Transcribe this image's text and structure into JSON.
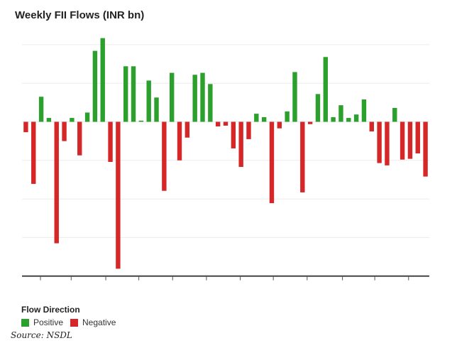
{
  "chart_data": {
    "type": "bar",
    "title": "Weekly FII Flows (INR bn)",
    "xlabel": "",
    "ylabel": "",
    "ylim": [
      -40,
      24
    ],
    "gridlines": [
      20,
      10,
      0,
      -10,
      -20,
      -30
    ],
    "grid": true,
    "x_tick_positions": [
      1.9,
      5.9,
      10.4,
      14.7,
      19.1,
      23.5,
      27.9,
      32.2,
      36.6,
      41.2,
      45.4,
      49.8
    ],
    "values": [
      -2.7,
      -16.1,
      6.5,
      1.0,
      -31.5,
      -5.0,
      1.0,
      -8.7,
      2.4,
      18.4,
      21.7,
      -10.4,
      -38.1,
      14.4,
      14.4,
      0.3,
      10.7,
      6.3,
      -17.9,
      12.7,
      -10.0,
      -4.1,
      12.2,
      12.7,
      9.8,
      -1.2,
      -1.0,
      -6.9,
      -11.7,
      -4.5,
      2.1,
      1.2,
      -21.1,
      -1.7,
      2.7,
      12.9,
      -18.3,
      -0.6,
      7.2,
      16.8,
      1.2,
      4.3,
      1.0,
      1.9,
      5.8,
      -2.5,
      -10.7,
      -11.3,
      3.6,
      -9.8,
      -9.6,
      -8.2,
      -14.2
    ],
    "legend": {
      "title": "Flow Direction",
      "placement": "bottom-left",
      "items": [
        {
          "label": "Positive",
          "color": "#2ca02c"
        },
        {
          "label": "Negative",
          "color": "#d62728"
        }
      ]
    },
    "source": "Source: NSDL"
  }
}
